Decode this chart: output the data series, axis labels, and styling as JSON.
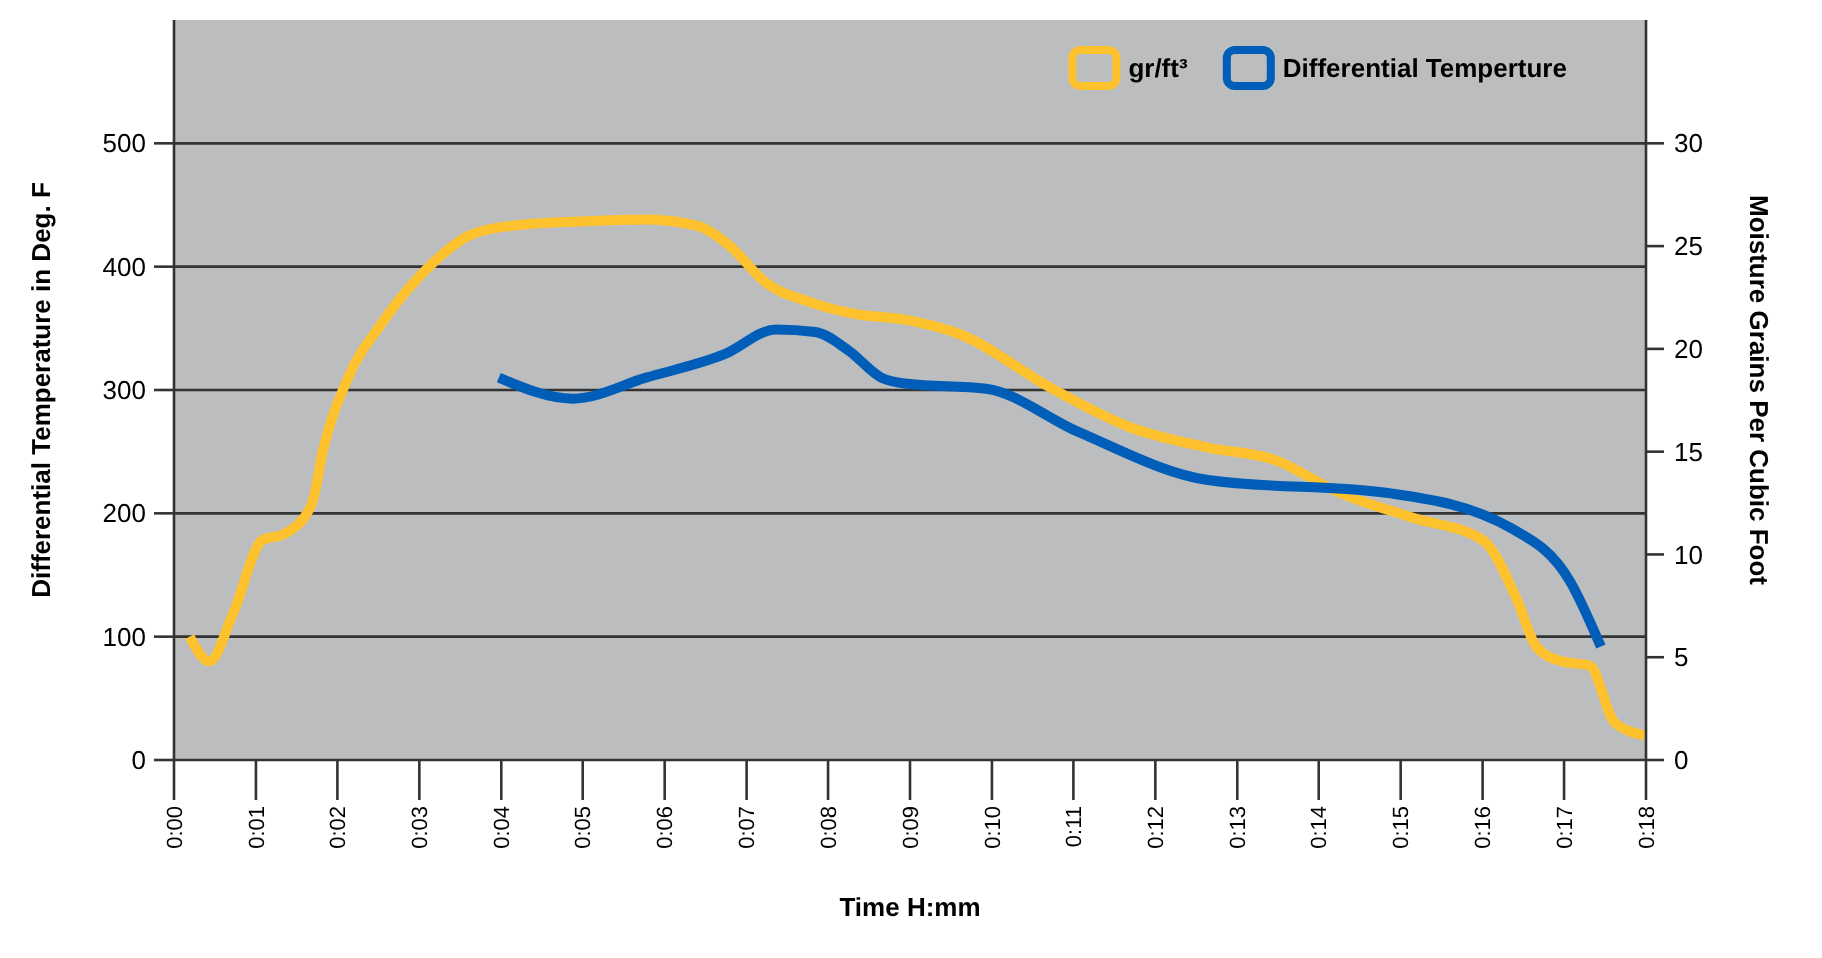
{
  "chart_data": {
    "type": "line",
    "xlabel": "Time H:mm",
    "ylabel": "Differential Temperature in Deg. F",
    "y2label": "Moisture Grains Per Cubic Foot",
    "xlim": [
      0,
      0.3
    ],
    "xticks": [
      {
        "value": 0,
        "label": "0:00"
      },
      {
        "value": 0.0167,
        "label": "0:01"
      },
      {
        "value": 0.0333,
        "label": "0:02"
      },
      {
        "value": 0.05,
        "label": "0:03"
      },
      {
        "value": 0.0667,
        "label": "0:04"
      },
      {
        "value": 0.0833,
        "label": "0:05"
      },
      {
        "value": 0.1,
        "label": "0:06"
      },
      {
        "value": 0.1167,
        "label": "0:07"
      },
      {
        "value": 0.1333,
        "label": "0:08"
      },
      {
        "value": 0.15,
        "label": "0:09"
      },
      {
        "value": 0.1667,
        "label": "0:10"
      },
      {
        "value": 0.1833,
        "label": "0:11"
      },
      {
        "value": 0.2,
        "label": "0:12"
      },
      {
        "value": 0.2167,
        "label": "0:13"
      },
      {
        "value": 0.2333,
        "label": "0:14"
      },
      {
        "value": 0.25,
        "label": "0:15"
      },
      {
        "value": 0.2667,
        "label": "0:16"
      },
      {
        "value": 0.2833,
        "label": "0:17"
      },
      {
        "value": 0.3,
        "label": "0:18"
      }
    ],
    "ylim": [
      0,
      600
    ],
    "yticks": [
      0,
      100,
      200,
      300,
      400,
      500
    ],
    "y2lim": [
      0,
      36
    ],
    "y2ticks": [
      0,
      5,
      10,
      15,
      20,
      25,
      30
    ],
    "grid": "y",
    "legend": "top right",
    "line_style": "solid",
    "marker": "none",
    "series": [
      {
        "name": "gr/ft³",
        "color": "#fec22e",
        "axis": "y2",
        "x": [
          0.0032,
          0.0072,
          0.012,
          0.018,
          0.0225,
          0.028,
          0.0305,
          0.0353,
          0.0425,
          0.0533,
          0.06,
          0.0693,
          0.0825,
          0.0962,
          0.1065,
          0.1133,
          0.1207,
          0.1293,
          0.1387,
          0.1495,
          0.1603,
          0.1787,
          0.1947,
          0.2107,
          0.2243,
          0.2375,
          0.2523,
          0.2667,
          0.2737,
          0.2777,
          0.2828,
          0.2885,
          0.2937,
          0.2997
        ],
        "values": [
          6.0,
          4.8,
          7.1,
          10.7,
          11.0,
          12.4,
          15.2,
          18.5,
          21.3,
          24.3,
          25.5,
          26.0,
          26.2,
          26.3,
          26.0,
          25.0,
          23.2,
          22.3,
          21.7,
          21.4,
          20.7,
          18.1,
          16.2,
          15.2,
          14.6,
          13.0,
          11.8,
          10.7,
          7.8,
          5.5,
          4.8,
          4.6,
          1.8,
          1.2
        ]
      },
      {
        "name": "Differential Temperture",
        "color": "#005eb8",
        "x": [
          0.0662,
          0.0813,
          0.0962,
          0.1122,
          0.1227,
          0.1307,
          0.1375,
          0.1442,
          0.1495,
          0.1655,
          0.1843,
          0.2107,
          0.2483,
          0.2725,
          0.2845,
          0.2908
        ],
        "values": [
          310,
          293,
          310,
          329,
          349,
          347,
          332,
          310,
          305,
          301,
          266,
          227,
          216,
          188,
          145,
          92
        ]
      }
    ]
  }
}
